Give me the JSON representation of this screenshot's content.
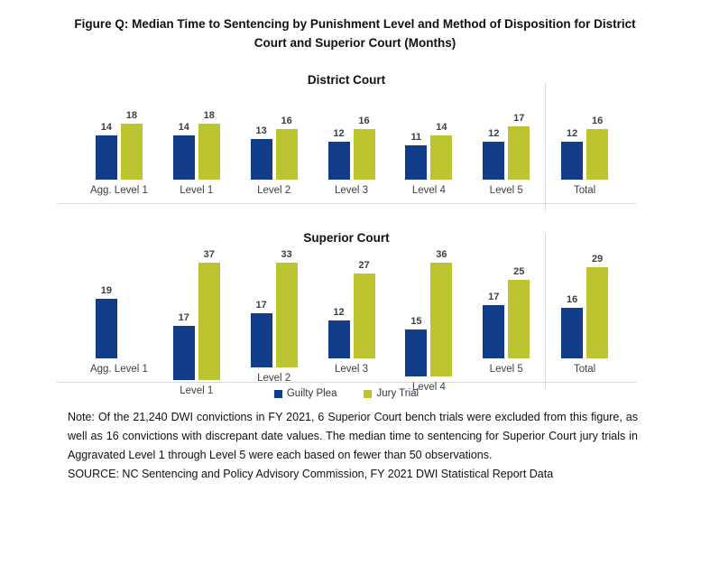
{
  "figure": {
    "title": "Figure Q: Median Time to Sentencing by Punishment Level and Method of Disposition for District Court and Superior Court (Months)"
  },
  "legend": {
    "items": [
      {
        "label": "Guilty Plea",
        "color": "#113c8a"
      },
      {
        "label": "Jury Trial",
        "color": "#bcc42f"
      }
    ]
  },
  "notes": {
    "note": "Note: Of the 21,240 DWI convictions in FY 2021, 6 Superior Court bench trials were excluded from this figure, as well as 16 convictions with discrepant date values. The median time to sentencing for Superior Court jury trials in Aggravated Level 1 through Level 5 were each based on fewer than 50 observations.",
    "source": "SOURCE: NC Sentencing and Policy Advisory Commission, FY 2021 DWI Statistical Report Data"
  },
  "chart_data": [
    {
      "type": "bar",
      "title": "District Court",
      "categories": [
        "Agg. Level 1",
        "Level 1",
        "Level 2",
        "Level 3",
        "Level 4",
        "Level 5",
        "Total"
      ],
      "series": [
        {
          "name": "Guilty Plea",
          "color": "#113c8a",
          "values": [
            14,
            14,
            13,
            12,
            11,
            12,
            12
          ]
        },
        {
          "name": "Jury Trial",
          "color": "#bcc42f",
          "values": [
            18,
            18,
            16,
            16,
            14,
            17,
            16
          ]
        }
      ],
      "ylim": [
        0,
        20
      ],
      "xlabel": "",
      "ylabel": "",
      "grid": false,
      "data_labels": true,
      "legend_position": "shared-below",
      "divider_before_category": "Total"
    },
    {
      "type": "bar",
      "title": "Superior Court",
      "categories": [
        "Agg. Level 1",
        "Level 1",
        "Level 2",
        "Level 3",
        "Level 4",
        "Level 5",
        "Total"
      ],
      "series": [
        {
          "name": "Guilty Plea",
          "color": "#113c8a",
          "values": [
            19,
            17,
            17,
            12,
            15,
            17,
            16
          ]
        },
        {
          "name": "Jury Trial",
          "color": "#bcc42f",
          "values": [
            null,
            37,
            33,
            27,
            36,
            25,
            29
          ]
        }
      ],
      "ylim": [
        0,
        40
      ],
      "xlabel": "",
      "ylabel": "",
      "grid": false,
      "data_labels": true,
      "legend_position": "shared-below",
      "divider_before_category": "Total"
    }
  ]
}
